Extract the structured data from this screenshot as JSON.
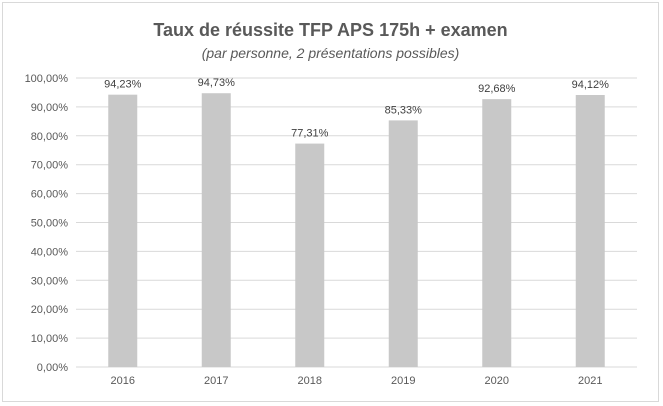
{
  "chart_data": {
    "type": "bar",
    "title": "Taux de réussite TFP APS 175h + examen",
    "subtitle": "(par personne, 2 présentations possibles)",
    "categories": [
      "2016",
      "2017",
      "2018",
      "2019",
      "2020",
      "2021"
    ],
    "values": [
      94.23,
      94.73,
      77.31,
      85.33,
      92.68,
      94.12
    ],
    "data_labels": [
      "94,23%",
      "94,73%",
      "77,31%",
      "85,33%",
      "92,68%",
      "94,12%"
    ],
    "y_ticks": [
      0,
      10,
      20,
      30,
      40,
      50,
      60,
      70,
      80,
      90,
      100
    ],
    "y_tick_labels": [
      "0,00%",
      "10,00%",
      "20,00%",
      "30,00%",
      "40,00%",
      "50,00%",
      "60,00%",
      "70,00%",
      "80,00%",
      "90,00%",
      "100,00%"
    ],
    "ylim": [
      0,
      100
    ],
    "xlabel": "",
    "ylabel": "",
    "grid": true,
    "legend": "none",
    "colors": {
      "bar": "#c8c8c8",
      "grid": "#d9d9d9",
      "text": "#595959"
    }
  }
}
